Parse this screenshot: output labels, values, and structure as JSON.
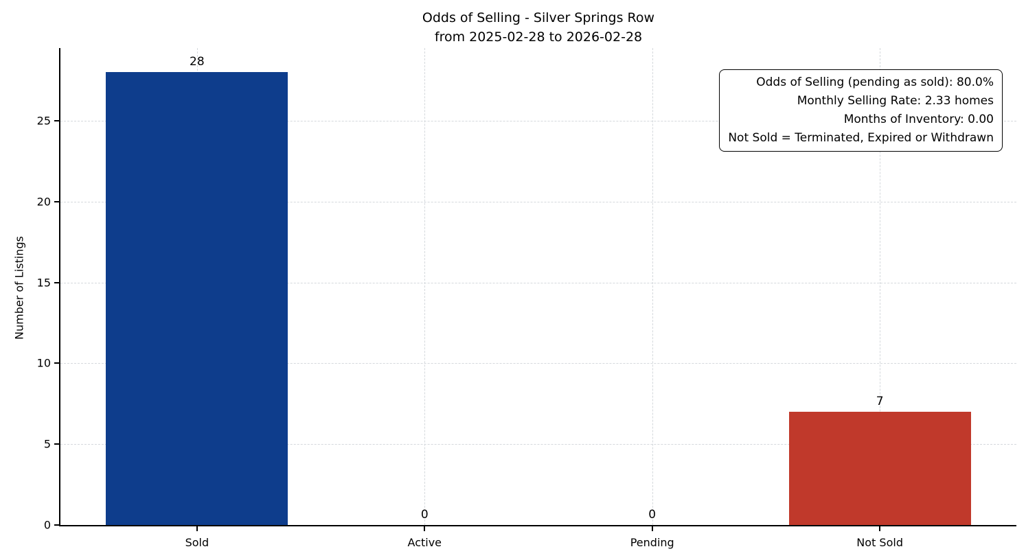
{
  "chart_data": {
    "type": "bar",
    "title": "Odds of Selling - Silver Springs Row",
    "subtitle": "from 2025-02-28 to 2026-02-28",
    "categories": [
      "Sold",
      "Active",
      "Pending",
      "Not Sold"
    ],
    "values": [
      28,
      0,
      0,
      7
    ],
    "bar_colors": [
      "#0e3d8c",
      "#0e3d8c",
      "#0e3d8c",
      "#c0392b"
    ],
    "value_labels": [
      "28",
      "0",
      "0",
      "7"
    ],
    "xlabel": "",
    "ylabel": "Number of Listings",
    "ylim": [
      0,
      29.5
    ],
    "yticks": [
      0,
      5,
      10,
      15,
      20,
      25
    ],
    "grid": "dashed both axes",
    "legend": "none",
    "annotation": {
      "lines": [
        "Odds of Selling (pending as sold): 80.0%",
        "Monthly Selling Rate: 2.33 homes",
        "Months of Inventory: 0.00",
        "Not Sold = Terminated, Expired or Withdrawn"
      ]
    }
  }
}
